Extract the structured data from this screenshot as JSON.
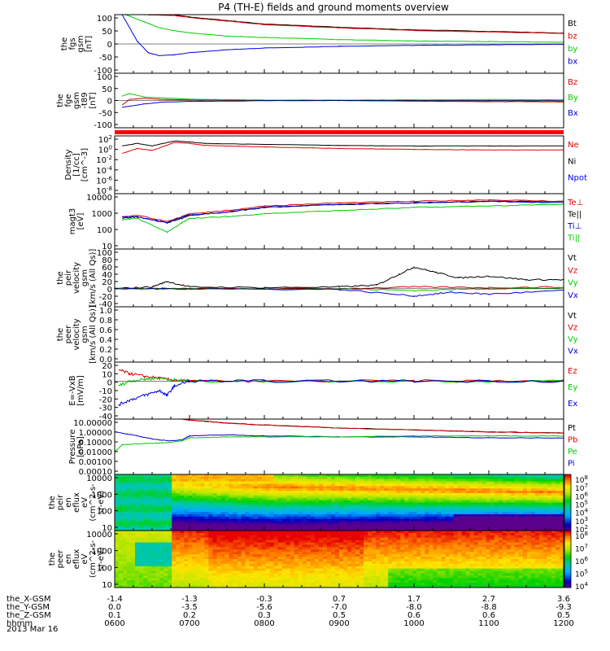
{
  "figure": {
    "title": "P4 (TH-E) fields and ground moments overview",
    "date_label": "2013 Mar 16",
    "colors": {
      "black": "#000000",
      "red": "#e00000",
      "green": "#00cc00",
      "blue": "#0000dd",
      "flag_red": "#ff0000"
    }
  },
  "chart_data": [
    {
      "type": "line",
      "panel": "fgs",
      "ylabel_lines": [
        "the",
        "fgs",
        "gsm",
        "[nT]"
      ],
      "yticks": [
        "100",
        "50",
        "0",
        "-50",
        "-100"
      ],
      "ylim": [
        -100,
        100
      ],
      "legend": [
        {
          "label": "Bt",
          "color": "black"
        },
        {
          "label": "bz",
          "color": "red"
        },
        {
          "label": "by",
          "color": "green"
        },
        {
          "label": "bx",
          "color": "blue"
        }
      ],
      "series": [
        {
          "label": "Bt",
          "color": "black",
          "x": [
            6.4,
            6.8,
            7.0,
            7.5,
            8.0,
            9.0,
            10.0,
            11.0,
            12.0
          ],
          "y": [
            100,
            99,
            92,
            80,
            68,
            57,
            48,
            43,
            37
          ]
        },
        {
          "label": "bz",
          "color": "red",
          "x": [
            6.4,
            6.8,
            7.0,
            7.5,
            8.0,
            9.0,
            10.0,
            11.0,
            12.0
          ],
          "y": [
            100,
            97,
            90,
            78,
            66,
            55,
            46,
            41,
            36
          ]
        },
        {
          "label": "by",
          "color": "green",
          "x": [
            6.15,
            6.4,
            6.6,
            6.8,
            7.0,
            7.5,
            8.0,
            9.0,
            10.0,
            11.0,
            12.0
          ],
          "y": [
            100,
            75,
            55,
            45,
            38,
            27,
            22,
            15,
            10,
            8,
            6
          ]
        },
        {
          "label": "bx",
          "color": "blue",
          "x": [
            6.1,
            6.2,
            6.3,
            6.45,
            6.6,
            6.8,
            7.0,
            7.5,
            8.0,
            9.0,
            10.0,
            11.0,
            12.0
          ],
          "y": [
            100,
            55,
            10,
            -30,
            -40,
            -37,
            -30,
            -20,
            -14,
            -8,
            -5,
            -3,
            -1
          ]
        }
      ]
    },
    {
      "type": "line",
      "panel": "fge",
      "ylabel_lines": [
        "the",
        "fge",
        "gsm",
        "-t89",
        "[nT]"
      ],
      "yticks": [
        "100",
        "50",
        "0",
        "-50",
        "-100"
      ],
      "ylim": [
        -120,
        120
      ],
      "legend": [
        {
          "label": "Bz",
          "color": "red"
        },
        {
          "label": "By",
          "color": "green"
        },
        {
          "label": "Bx",
          "color": "blue"
        }
      ],
      "series": [
        {
          "label": "Bz",
          "color": "red",
          "x": [
            6.1,
            6.2,
            6.4,
            6.6,
            7.0,
            8.0,
            9.0,
            10.0,
            11.0,
            12.0
          ],
          "y": [
            -20,
            5,
            10,
            5,
            3,
            1,
            0,
            -3,
            -5,
            -6
          ]
        },
        {
          "label": "By",
          "color": "green",
          "x": [
            6.1,
            6.2,
            6.4,
            6.6,
            7.0,
            8.0,
            9.0,
            10.0,
            11.0,
            12.0
          ],
          "y": [
            20,
            30,
            15,
            12,
            6,
            2,
            2,
            3,
            4,
            3
          ]
        },
        {
          "label": "Bx",
          "color": "blue",
          "x": [
            6.1,
            6.2,
            6.4,
            6.6,
            7.0,
            8.0,
            9.0,
            10.0,
            11.0,
            12.0
          ],
          "y": [
            -30,
            -25,
            -15,
            -8,
            -4,
            -1,
            0,
            -1,
            -1,
            -2
          ]
        }
      ]
    },
    {
      "type": "line",
      "panel": "density",
      "log": true,
      "ylabel_lines": [
        "Density",
        "[1/cc]",
        "[cm^-3]"
      ],
      "yticks": [
        "10^2",
        "10^0",
        "10^-2",
        "10^-4",
        "10^-6",
        "10^-8"
      ],
      "ylim": [
        -9,
        2.5
      ],
      "legend": [
        {
          "label": "Ne",
          "color": "red"
        },
        {
          "label": "Ni",
          "color": "black"
        },
        {
          "label": "Npot",
          "color": "blue"
        }
      ],
      "series": [
        {
          "label": "Ni",
          "color": "black",
          "x": [
            6.1,
            6.3,
            6.5,
            6.8,
            7.0,
            7.2,
            8.0,
            9.0,
            10.0,
            11.0,
            12.0
          ],
          "y": [
            0.5,
            1.0,
            0.5,
            1.5,
            1.3,
            1.0,
            0.8,
            0.6,
            0.5,
            0.5,
            0.5
          ]
        },
        {
          "label": "Ne",
          "color": "red",
          "x": [
            6.1,
            6.3,
            6.5,
            6.8,
            7.0,
            7.2,
            8.0,
            9.0,
            10.0,
            11.0,
            12.0
          ],
          "y": [
            -1.0,
            0.0,
            -0.4,
            1.2,
            1.0,
            0.6,
            0.3,
            0.0,
            -0.2,
            -0.3,
            -0.3
          ]
        }
      ]
    },
    {
      "type": "line",
      "panel": "temperature",
      "log": true,
      "ylabel_lines": [
        "magt3",
        "[eV]"
      ],
      "yticks": [
        "10000",
        "1000",
        "100",
        "10"
      ],
      "ylim": [
        0.5,
        4.1
      ],
      "legend": [
        {
          "label": "Te⊥",
          "color": "red"
        },
        {
          "label": "Te||",
          "color": "black"
        },
        {
          "label": "Ti⊥",
          "color": "blue"
        },
        {
          "label": "Ti||",
          "color": "green"
        }
      ],
      "series": [
        {
          "label": "Te||",
          "color": "black",
          "x": [
            6.1,
            6.3,
            6.7,
            6.9,
            7.0,
            7.5,
            8.0,
            9.0,
            10.0,
            11.0,
            12.0
          ],
          "y": [
            2.5,
            2.6,
            2.2,
            2.5,
            2.7,
            2.9,
            3.2,
            3.4,
            3.5,
            3.6,
            3.6
          ]
        },
        {
          "label": "Te⊥",
          "color": "red",
          "x": [
            6.1,
            6.3,
            6.7,
            6.9,
            7.0,
            7.5,
            8.0,
            9.0,
            10.0,
            11.0,
            12.0
          ],
          "y": [
            2.6,
            2.7,
            2.3,
            2.6,
            2.8,
            3.0,
            3.3,
            3.5,
            3.6,
            3.7,
            3.6
          ]
        },
        {
          "label": "Ti⊥",
          "color": "blue",
          "x": [
            6.1,
            6.3,
            6.7,
            6.9,
            7.0,
            7.5,
            8.0,
            9.0,
            10.0,
            11.0,
            12.0
          ],
          "y": [
            2.6,
            2.6,
            2.2,
            2.6,
            2.7,
            2.9,
            3.2,
            3.4,
            3.5,
            3.6,
            3.5
          ]
        },
        {
          "label": "Ti||",
          "color": "green",
          "x": [
            6.1,
            6.3,
            6.7,
            6.9,
            7.0,
            7.5,
            8.0,
            9.0,
            10.0,
            11.0,
            12.0
          ],
          "y": [
            2.4,
            2.5,
            1.6,
            2.2,
            2.5,
            2.6,
            2.8,
            3.0,
            3.2,
            3.3,
            3.4
          ]
        }
      ]
    },
    {
      "type": "line",
      "panel": "peir",
      "ylabel_lines": [
        "the",
        "peir",
        "velocity",
        "gsm",
        "[km/s (All Qs)]"
      ],
      "yticks": [
        "100",
        "80",
        "60",
        "40",
        "20",
        "0",
        "-20",
        "-40"
      ],
      "ylim": [
        -50,
        110
      ],
      "legend": [
        {
          "label": "Vt",
          "color": "black"
        },
        {
          "label": "Vz",
          "color": "red"
        },
        {
          "label": "Vy",
          "color": "green"
        },
        {
          "label": "Vx",
          "color": "blue"
        }
      ],
      "series": [
        {
          "label": "Vt",
          "color": "black",
          "x": [
            6.0,
            6.5,
            6.7,
            7.0,
            8.0,
            9.0,
            9.5,
            9.8,
            10.0,
            10.3,
            10.6,
            11.0,
            11.5,
            12.0
          ],
          "y": [
            0,
            5,
            20,
            5,
            3,
            5,
            10,
            40,
            60,
            45,
            30,
            35,
            25,
            25
          ]
        },
        {
          "label": "Vz",
          "color": "red",
          "x": [
            6.0,
            7.0,
            9.0,
            10.0,
            11.0,
            12.0
          ],
          "y": [
            0,
            0,
            0,
            5,
            3,
            5
          ]
        },
        {
          "label": "Vy",
          "color": "green",
          "x": [
            6.0,
            7.0,
            9.0,
            10.0,
            11.0,
            12.0
          ],
          "y": [
            0,
            0,
            0,
            -5,
            0,
            2
          ]
        },
        {
          "label": "Vx",
          "color": "blue",
          "x": [
            6.0,
            7.0,
            9.0,
            10.0,
            10.5,
            11.0,
            12.0
          ],
          "y": [
            0,
            0,
            -2,
            -20,
            -10,
            -15,
            -5
          ]
        }
      ]
    },
    {
      "type": "line",
      "panel": "peer",
      "ylabel_lines": [
        "the",
        "peer",
        "velocity",
        "gsm",
        "[km/s (All Qs)]"
      ],
      "yticks": [
        "1.0",
        "0.8",
        "0.6",
        "0.4",
        "0.2",
        "0.0"
      ],
      "ylim": [
        0,
        1
      ],
      "legend": [
        {
          "label": "Vt",
          "color": "black"
        },
        {
          "label": "Vz",
          "color": "red"
        },
        {
          "label": "Vy",
          "color": "green"
        },
        {
          "label": "Vx",
          "color": "blue"
        }
      ],
      "series": []
    },
    {
      "type": "line",
      "panel": "efield",
      "ylabel_lines": [
        "E=-VxB",
        "[mV/m]"
      ],
      "yticks": [
        "20",
        "10",
        "0",
        "-10",
        "-20",
        "-30",
        "-40"
      ],
      "ylim": [
        -40,
        20
      ],
      "legend": [
        {
          "label": "Ez",
          "color": "red"
        },
        {
          "label": "Ey",
          "color": "green"
        },
        {
          "label": "Ex",
          "color": "blue"
        }
      ],
      "series": [
        {
          "label": "Ez",
          "color": "red",
          "x": [
            6.05,
            6.2,
            6.4,
            6.6,
            6.8,
            7.0,
            8.0,
            10.0,
            12.0
          ],
          "y": [
            12,
            8,
            5,
            3,
            1,
            0,
            0,
            0,
            0
          ]
        },
        {
          "label": "Ey",
          "color": "green",
          "x": [
            6.05,
            6.2,
            6.4,
            6.6,
            6.8,
            7.0,
            8.0,
            10.0,
            12.0
          ],
          "y": [
            -5,
            0,
            2,
            3,
            1,
            0,
            0,
            0,
            0
          ]
        },
        {
          "label": "Ex",
          "color": "blue",
          "x": [
            6.05,
            6.2,
            6.4,
            6.6,
            6.7,
            6.8,
            7.0,
            8.0,
            10.0,
            12.0
          ],
          "y": [
            -25,
            -20,
            -15,
            -10,
            -15,
            -5,
            0,
            0,
            0,
            0
          ]
        }
      ]
    },
    {
      "type": "line",
      "panel": "pressure",
      "log": true,
      "ylabel_lines": [
        "Pressure",
        "[nPa]"
      ],
      "yticks": [
        "10.00000",
        "1.00000",
        "0.10000",
        "0.01000",
        "0.00100",
        "0.00010"
      ],
      "ylim": [
        -4.3,
        1.3
      ],
      "legend": [
        {
          "label": "Pt",
          "color": "black"
        },
        {
          "label": "Pb",
          "color": "red"
        },
        {
          "label": "Pe",
          "color": "green"
        },
        {
          "label": "Pi",
          "color": "blue"
        }
      ],
      "series": [
        {
          "label": "Pt",
          "color": "black",
          "x": [
            6.9,
            7.0,
            7.5,
            8.0,
            9.0,
            10.0,
            11.0,
            12.0
          ],
          "y": [
            1.3,
            1.2,
            0.9,
            0.7,
            0.4,
            0.2,
            0.0,
            -0.1
          ]
        },
        {
          "label": "Pb",
          "color": "red",
          "x": [
            6.9,
            7.0,
            7.5,
            8.0,
            9.0,
            10.0,
            11.0,
            12.0
          ],
          "y": [
            1.3,
            1.2,
            0.9,
            0.7,
            0.4,
            0.2,
            0.0,
            -0.1
          ]
        },
        {
          "label": "Pi",
          "color": "blue",
          "x": [
            6.0,
            6.3,
            6.5,
            6.7,
            6.9,
            7.0,
            7.5,
            8.0,
            9.0,
            10.0,
            11.0,
            12.0
          ],
          "y": [
            0.0,
            -0.4,
            -0.7,
            -0.9,
            -0.8,
            -0.4,
            -0.3,
            -0.4,
            -0.5,
            -0.5,
            -0.6,
            -0.6
          ]
        },
        {
          "label": "Pe",
          "color": "green",
          "x": [
            6.0,
            6.1,
            6.3,
            6.7,
            6.9,
            7.0,
            7.5,
            8.0,
            9.0,
            10.0,
            11.0,
            12.0
          ],
          "y": [
            -2.0,
            -1.3,
            -1.2,
            -1.1,
            -0.9,
            -0.6,
            -0.5,
            -0.5,
            -0.5,
            -0.4,
            -0.4,
            -0.4
          ]
        }
      ]
    },
    {
      "type": "heatmap",
      "panel": "peir_eflux",
      "log": true,
      "ylabel_lines": [
        "the",
        "peir",
        "en",
        "eflux",
        "eV",
        "(cm^2-s-",
        "sr-eV)"
      ],
      "yticks": [
        "10000",
        "1000",
        "100",
        "10"
      ],
      "ylim": [
        0.8,
        4.4
      ],
      "colorbar": {
        "ticks": [
          "10^8",
          "10^7",
          "10^6",
          "10^5",
          "10^4",
          "10^3",
          "10^2"
        ],
        "range": [
          2,
          8
        ]
      }
    },
    {
      "type": "heatmap",
      "panel": "peer_eflux",
      "log": true,
      "ylabel_lines": [
        "the",
        "peer",
        "en",
        "eflux",
        "eV",
        "(cm^2-s-",
        "sr-eV)"
      ],
      "yticks": [
        "10000",
        "1000",
        "100",
        "10"
      ],
      "ylim": [
        0.8,
        4.4
      ],
      "colorbar": {
        "ticks": [
          "10^8",
          "10^7",
          "10^6",
          "10^5",
          "10^4"
        ],
        "range": [
          3.5,
          8.2
        ]
      }
    }
  ],
  "time_axis": {
    "xlim": [
      6,
      12
    ],
    "rows": [
      {
        "name": "the_X-GSM",
        "values": [
          "-1.4",
          "-1.3",
          "-0.3",
          "0.7",
          "1.7",
          "2.7",
          "3.6"
        ]
      },
      {
        "name": "the_Y-GSM",
        "values": [
          "0.0",
          "-3.5",
          "-5.6",
          "-7.0",
          "-8.0",
          "-8.8",
          "-9.3"
        ]
      },
      {
        "name": "the_Z-GSM",
        "values": [
          "0.1",
          "0.2",
          "0.3",
          "0.5",
          "0.6",
          "0.6",
          "0.5"
        ]
      },
      {
        "name": "hhmm",
        "values": [
          "0600",
          "0700",
          "0800",
          "0900",
          "1000",
          "1100",
          "1200"
        ]
      }
    ]
  }
}
